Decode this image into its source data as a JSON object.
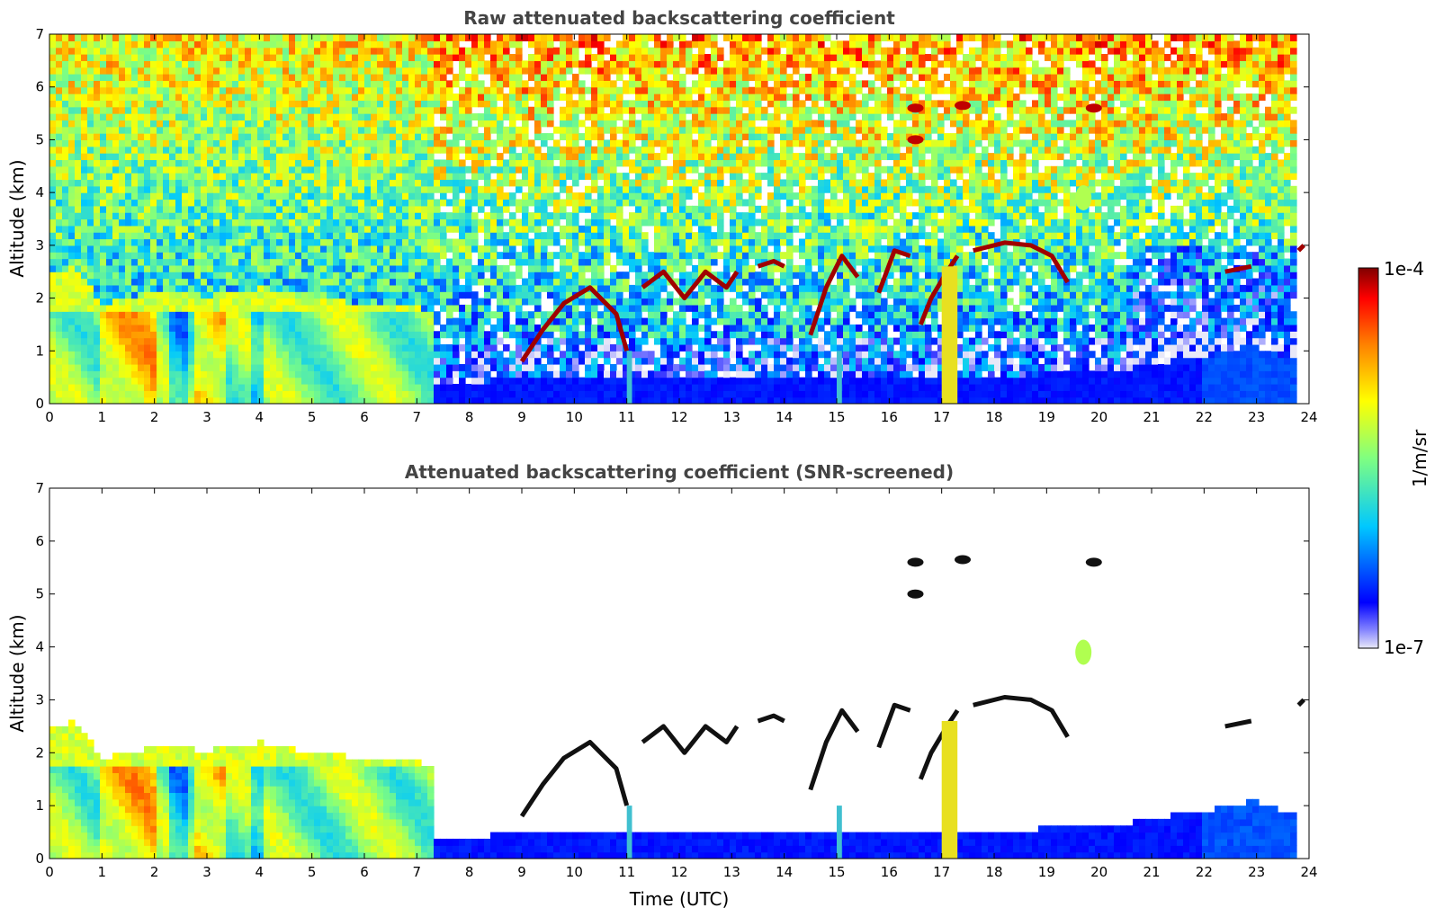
{
  "chart_data": [
    {
      "type": "heatmap",
      "title": "Raw attenuated backscattering coefficient",
      "xlabel": "",
      "ylabel": "Altitude (km)",
      "xlim": [
        0,
        24
      ],
      "ylim": [
        0,
        7
      ],
      "xticks": [
        "0",
        "1",
        "2",
        "3",
        "4",
        "5",
        "6",
        "7",
        "8",
        "9",
        "10",
        "11",
        "12",
        "13",
        "14",
        "15",
        "16",
        "17",
        "18",
        "19",
        "20",
        "21",
        "22",
        "23",
        "24"
      ],
      "yticks": [
        "0",
        "1",
        "2",
        "3",
        "4",
        "5",
        "6",
        "7"
      ],
      "data_end_time": 23.8,
      "features": {
        "boundary_layer": {
          "x_range": [
            0,
            7.3
          ],
          "top_km": 1.75,
          "level": 0.55
        },
        "aerosol_layer_top": [
          [
            0,
            2.5
          ],
          [
            0.5,
            2.6
          ],
          [
            1,
            1.9
          ],
          [
            2,
            2.1
          ],
          [
            3,
            2.05
          ],
          [
            4,
            2.2
          ],
          [
            5,
            2.0
          ],
          [
            6,
            1.9
          ],
          [
            7.3,
            1.8
          ]
        ],
        "near_surface_layer": {
          "x_range": [
            7.3,
            23.8
          ],
          "top_km": [
            [
              7.5,
              0.4
            ],
            [
              10,
              0.5
            ],
            [
              14,
              0.55
            ],
            [
              17,
              0.5
            ],
            [
              20,
              0.6
            ],
            [
              22,
              0.9
            ],
            [
              23,
              1.1
            ],
            [
              23.8,
              0.8
            ]
          ],
          "level": 0.15
        },
        "cloud_tracks": [
          [
            [
              9.0,
              0.8
            ],
            [
              9.4,
              1.4
            ],
            [
              9.8,
              1.9
            ],
            [
              10.3,
              2.2
            ],
            [
              10.8,
              1.7
            ],
            [
              11.0,
              1.0
            ]
          ],
          [
            [
              11.3,
              2.2
            ],
            [
              11.7,
              2.5
            ],
            [
              12.1,
              2.0
            ],
            [
              12.5,
              2.5
            ],
            [
              12.9,
              2.2
            ],
            [
              13.1,
              2.5
            ]
          ],
          [
            [
              13.5,
              2.6
            ],
            [
              13.8,
              2.7
            ],
            [
              14.0,
              2.6
            ]
          ],
          [
            [
              14.5,
              1.3
            ],
            [
              14.8,
              2.2
            ],
            [
              15.1,
              2.8
            ],
            [
              15.4,
              2.4
            ]
          ],
          [
            [
              15.8,
              2.1
            ],
            [
              16.1,
              2.9
            ],
            [
              16.4,
              2.8
            ]
          ],
          [
            [
              16.6,
              1.5
            ],
            [
              16.8,
              2.0
            ],
            [
              17.1,
              2.5
            ],
            [
              17.3,
              2.8
            ]
          ],
          [
            [
              17.6,
              2.9
            ],
            [
              18.2,
              3.05
            ],
            [
              18.7,
              3.0
            ],
            [
              19.1,
              2.8
            ],
            [
              19.4,
              2.3
            ]
          ],
          [
            [
              22.4,
              2.5
            ],
            [
              22.9,
              2.6
            ]
          ],
          [
            [
              23.8,
              2.9
            ],
            [
              23.9,
              3.0
            ]
          ]
        ],
        "high_clouds": [
          [
            16.5,
            5.6
          ],
          [
            16.5,
            5.0
          ],
          [
            17.4,
            5.65
          ],
          [
            19.9,
            5.6
          ],
          [
            19.7,
            3.9
          ]
        ],
        "precip_columns": [
          [
            17.0,
            17.3
          ],
          [
            15.0,
            15.1
          ],
          [
            11.0,
            11.1
          ]
        ]
      }
    },
    {
      "type": "heatmap",
      "title": "Attenuated backscattering coefficient (SNR-screened)",
      "xlabel": "Time (UTC)",
      "ylabel": "Altitude (km)",
      "xlim": [
        0,
        24
      ],
      "ylim": [
        0,
        7
      ],
      "xticks": [
        "0",
        "1",
        "2",
        "3",
        "4",
        "5",
        "6",
        "7",
        "8",
        "9",
        "10",
        "11",
        "12",
        "13",
        "14",
        "15",
        "16",
        "17",
        "18",
        "19",
        "20",
        "21",
        "22",
        "23",
        "24"
      ],
      "yticks": [
        "0",
        "1",
        "2",
        "3",
        "4",
        "5",
        "6",
        "7"
      ],
      "screened": true
    }
  ],
  "colorbar": {
    "label": "1/m/sr",
    "min_label": "1e-7",
    "max_label": "1e-4",
    "colormap": "jet",
    "colors": [
      "#e8e8f8",
      "#0000ff",
      "#00c8ff",
      "#80ff80",
      "#ffff00",
      "#ff8000",
      "#ff0000",
      "#800000"
    ]
  }
}
